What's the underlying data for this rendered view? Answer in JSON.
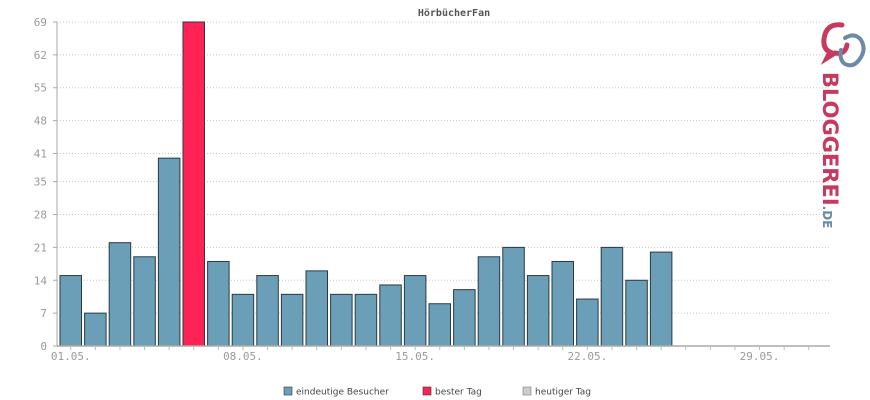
{
  "chart_data": {
    "type": "bar",
    "title": "HörbücherFan",
    "xlabel": "",
    "ylabel": "",
    "ylim": [
      0,
      72
    ],
    "yticks": [
      "0",
      "7",
      "14",
      "21",
      "28",
      "35",
      "41",
      "48",
      "55",
      "62",
      "69"
    ],
    "ytick_values": [
      0,
      7,
      14,
      21,
      28,
      35,
      41,
      48,
      55,
      62,
      69
    ],
    "xtick_labels": [
      {
        "day": 1,
        "label": "01.05."
      },
      {
        "day": 8,
        "label": "08.05."
      },
      {
        "day": 15,
        "label": "15.05."
      },
      {
        "day": 22,
        "label": "22.05."
      },
      {
        "day": 29,
        "label": "29.05."
      }
    ],
    "days_in_month": 31,
    "grid": true,
    "series": [
      {
        "name": "eindeutige Besucher",
        "color": "#6b9fb8",
        "days": [
          1,
          2,
          3,
          4,
          5,
          6,
          7,
          8,
          9,
          10,
          11,
          12,
          13,
          14,
          15,
          16,
          17,
          18,
          19,
          20,
          21,
          22,
          23,
          24,
          25
        ],
        "values": [
          15,
          7,
          22,
          19,
          40,
          69,
          18,
          11,
          15,
          11,
          16,
          11,
          11,
          13,
          15,
          9,
          12,
          19,
          21,
          15,
          18,
          10,
          21,
          14,
          20
        ]
      }
    ],
    "best_day": {
      "name": "bester Tag",
      "day": 6,
      "value": 69,
      "color": "#ff2255"
    },
    "today": {
      "name": "heutiger Tag",
      "color": "#cccccc"
    },
    "legend_position": "bottom"
  },
  "logo": {
    "word": "BLOGGEREI",
    "suffix": ".DE",
    "color_main": "#c73a60",
    "color_secondary": "#6a8aa8"
  }
}
